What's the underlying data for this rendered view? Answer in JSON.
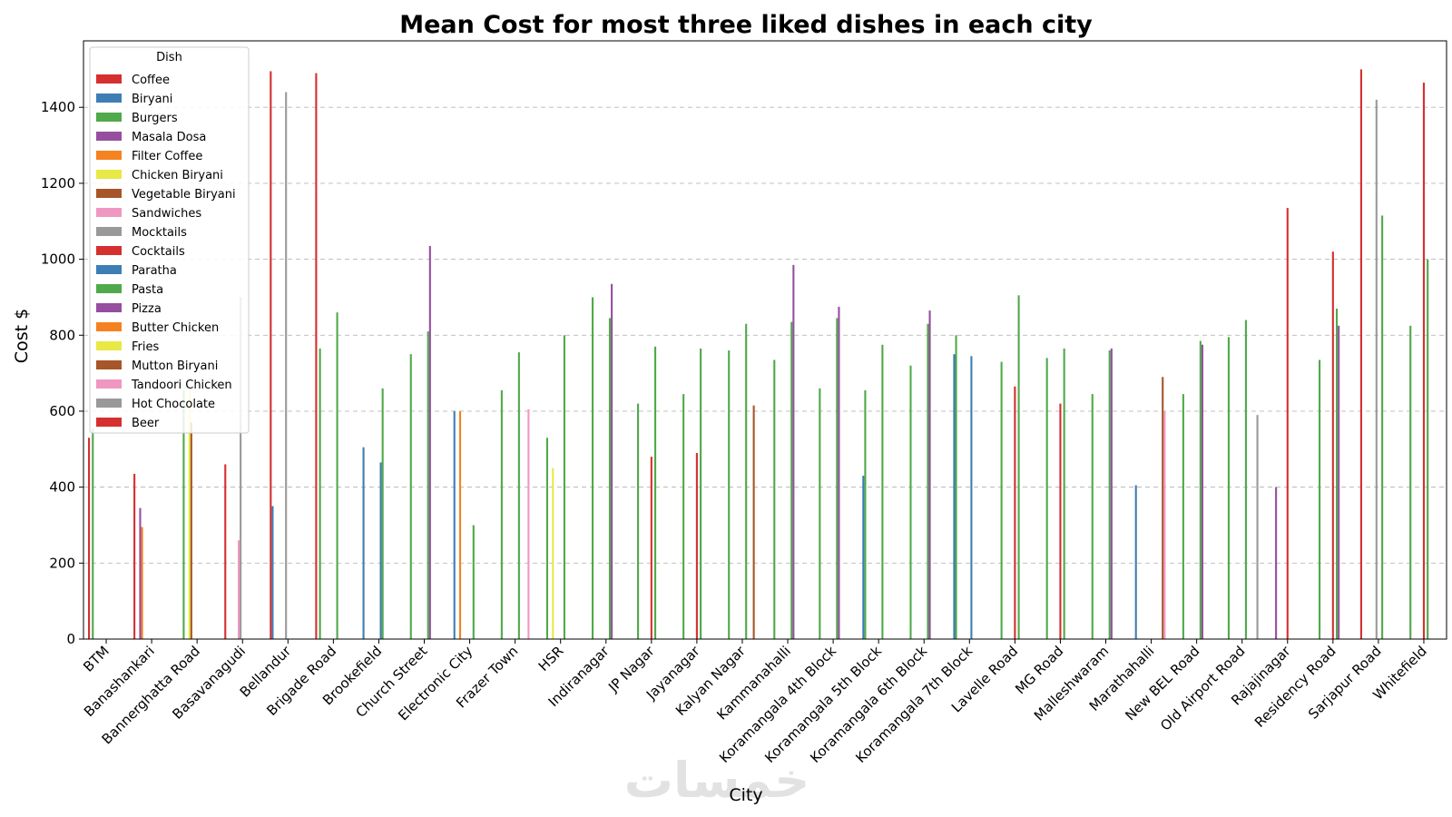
{
  "chart_data": {
    "type": "bar",
    "title": "Mean Cost for most three liked dishes in each city",
    "xlabel": "City",
    "ylabel": "Cost $",
    "ylim": [
      0,
      1575
    ],
    "yticks": [
      0,
      200,
      400,
      600,
      800,
      1000,
      1200,
      1400
    ],
    "grid": "y-dashed",
    "legend_title": "Dish",
    "legend_position": "top-left",
    "watermark": "خمسات",
    "categories": [
      "BTM",
      "Banashankari",
      "Bannerghatta Road",
      "Basavanagudi",
      "Bellandur",
      "Brigade Road",
      "Brookefield",
      "Church Street",
      "Electronic City",
      "Frazer Town",
      "HSR",
      "Indiranagar",
      "JP Nagar",
      "Jayanagar",
      "Kalyan Nagar",
      "Kammanahalli",
      "Koramangala 4th Block",
      "Koramangala 5th Block",
      "Koramangala 6th Block",
      "Koramangala 7th Block",
      "Lavelle Road",
      "MG Road",
      "Malleshwaram",
      "Marathahalli",
      "New BEL Road",
      "Old Airport Road",
      "Rajajinagar",
      "Residency Road",
      "Sarjapur Road",
      "Whitefield"
    ],
    "series": [
      {
        "name": "Coffee",
        "color": "#d62f30",
        "values": [
          530,
          435,
          null,
          460,
          1495,
          1490,
          null,
          null,
          null,
          null,
          null,
          null,
          null,
          null,
          null,
          null,
          null,
          null,
          null,
          null,
          null,
          null,
          null,
          null,
          null,
          null,
          null,
          null,
          1500,
          null
        ]
      },
      {
        "name": "Biryani",
        "color": "#3f7db5",
        "values": [
          null,
          null,
          null,
          null,
          350,
          null,
          505,
          null,
          600,
          null,
          null,
          null,
          null,
          null,
          null,
          null,
          null,
          430,
          null,
          750,
          null,
          null,
          null,
          405,
          null,
          null,
          null,
          null,
          null,
          null
        ]
      },
      {
        "name": "Burgers",
        "color": "#50a94a",
        "values": [
          555,
          null,
          655,
          null,
          null,
          765,
          null,
          750,
          null,
          655,
          530,
          900,
          620,
          645,
          760,
          735,
          660,
          655,
          720,
          800,
          730,
          740,
          645,
          null,
          645,
          795,
          null,
          735,
          null,
          825
        ]
      },
      {
        "name": "Masala Dosa",
        "color": "#964f9f",
        "values": [
          null,
          345,
          null,
          null,
          null,
          null,
          null,
          null,
          null,
          null,
          null,
          null,
          null,
          null,
          null,
          null,
          null,
          null,
          null,
          null,
          null,
          null,
          null,
          null,
          null,
          null,
          400,
          null,
          null,
          null
        ]
      },
      {
        "name": "Filter Coffee",
        "color": "#f58220",
        "values": [
          null,
          295,
          null,
          null,
          null,
          null,
          null,
          null,
          600,
          null,
          null,
          null,
          null,
          null,
          null,
          null,
          null,
          null,
          null,
          null,
          null,
          null,
          null,
          null,
          null,
          null,
          null,
          null,
          null,
          null
        ]
      },
      {
        "name": "Chicken Biryani",
        "color": "#e8e846",
        "values": [
          null,
          null,
          655,
          null,
          null,
          null,
          null,
          null,
          null,
          null,
          450,
          null,
          null,
          null,
          null,
          null,
          null,
          null,
          null,
          null,
          null,
          null,
          null,
          null,
          null,
          null,
          null,
          null,
          null,
          null
        ]
      },
      {
        "name": "Vegetable Biryani",
        "color": "#a65628",
        "values": [
          null,
          null,
          570,
          null,
          null,
          null,
          null,
          null,
          null,
          null,
          null,
          null,
          null,
          null,
          null,
          null,
          null,
          null,
          null,
          null,
          null,
          null,
          null,
          null,
          null,
          null,
          null,
          null,
          null,
          null
        ]
      },
      {
        "name": "Sandwiches",
        "color": "#f097c1",
        "values": [
          null,
          null,
          null,
          260,
          null,
          null,
          null,
          null,
          null,
          null,
          null,
          null,
          null,
          null,
          null,
          null,
          null,
          null,
          null,
          null,
          null,
          null,
          null,
          null,
          null,
          null,
          null,
          null,
          null,
          null
        ]
      },
      {
        "name": "Mocktails",
        "color": "#999999",
        "values": [
          null,
          null,
          null,
          900,
          1440,
          null,
          null,
          null,
          null,
          null,
          null,
          null,
          null,
          null,
          null,
          null,
          null,
          null,
          null,
          null,
          null,
          null,
          null,
          null,
          null,
          null,
          null,
          null,
          1420,
          null
        ]
      },
      {
        "name": "Cocktails",
        "color": "#d62f30",
        "values": [
          null,
          null,
          null,
          null,
          null,
          null,
          null,
          null,
          null,
          null,
          null,
          null,
          480,
          490,
          null,
          null,
          null,
          null,
          null,
          null,
          665,
          620,
          null,
          null,
          null,
          null,
          1135,
          1020,
          null,
          1465
        ]
      },
      {
        "name": "Paratha",
        "color": "#3f7db5",
        "values": [
          null,
          null,
          null,
          null,
          null,
          null,
          465,
          null,
          null,
          null,
          null,
          null,
          null,
          null,
          null,
          null,
          null,
          null,
          null,
          745,
          null,
          null,
          null,
          null,
          null,
          null,
          null,
          null,
          null,
          null
        ]
      },
      {
        "name": "Pasta",
        "color": "#50a94a",
        "values": [
          null,
          null,
          null,
          null,
          null,
          860,
          660,
          810,
          300,
          755,
          800,
          845,
          770,
          765,
          830,
          835,
          845,
          775,
          830,
          null,
          905,
          765,
          760,
          null,
          785,
          840,
          null,
          870,
          1115,
          1000
        ]
      },
      {
        "name": "Pizza",
        "color": "#964f9f",
        "values": [
          null,
          null,
          null,
          null,
          null,
          null,
          null,
          1035,
          null,
          null,
          null,
          935,
          null,
          null,
          null,
          985,
          875,
          null,
          865,
          null,
          null,
          null,
          765,
          null,
          775,
          null,
          null,
          825,
          null,
          null
        ]
      },
      {
        "name": "Butter Chicken",
        "color": "#f58220",
        "values": [
          null,
          null,
          null,
          null,
          null,
          null,
          null,
          null,
          null,
          null,
          null,
          null,
          null,
          null,
          null,
          null,
          null,
          null,
          null,
          null,
          null,
          null,
          null,
          null,
          null,
          null,
          null,
          null,
          null,
          null
        ]
      },
      {
        "name": "Fries",
        "color": "#e8e846",
        "values": [
          null,
          null,
          null,
          null,
          null,
          null,
          null,
          null,
          null,
          null,
          null,
          null,
          null,
          null,
          null,
          null,
          null,
          null,
          null,
          null,
          null,
          null,
          null,
          null,
          null,
          null,
          null,
          null,
          null,
          null
        ]
      },
      {
        "name": "Mutton Biryani",
        "color": "#a65628",
        "values": [
          null,
          null,
          null,
          null,
          null,
          null,
          null,
          null,
          null,
          null,
          null,
          null,
          null,
          null,
          615,
          null,
          null,
          null,
          null,
          null,
          null,
          null,
          null,
          690,
          null,
          null,
          null,
          null,
          null,
          null
        ]
      },
      {
        "name": "Tandoori Chicken",
        "color": "#f097c1",
        "values": [
          null,
          null,
          null,
          null,
          null,
          null,
          null,
          null,
          null,
          605,
          null,
          null,
          null,
          null,
          null,
          null,
          null,
          null,
          null,
          null,
          null,
          null,
          null,
          600,
          null,
          null,
          null,
          null,
          null,
          null
        ]
      },
      {
        "name": "Hot Chocolate",
        "color": "#999999",
        "values": [
          null,
          null,
          null,
          null,
          null,
          null,
          null,
          null,
          null,
          null,
          null,
          null,
          null,
          null,
          null,
          null,
          null,
          null,
          null,
          null,
          null,
          null,
          null,
          null,
          null,
          590,
          null,
          null,
          null,
          null
        ]
      },
      {
        "name": "Beer",
        "color": "#d62f30",
        "values": [
          null,
          null,
          null,
          null,
          null,
          null,
          null,
          null,
          null,
          null,
          null,
          null,
          null,
          null,
          null,
          null,
          null,
          null,
          null,
          null,
          null,
          null,
          null,
          null,
          null,
          null,
          null,
          null,
          null,
          null
        ]
      }
    ]
  }
}
